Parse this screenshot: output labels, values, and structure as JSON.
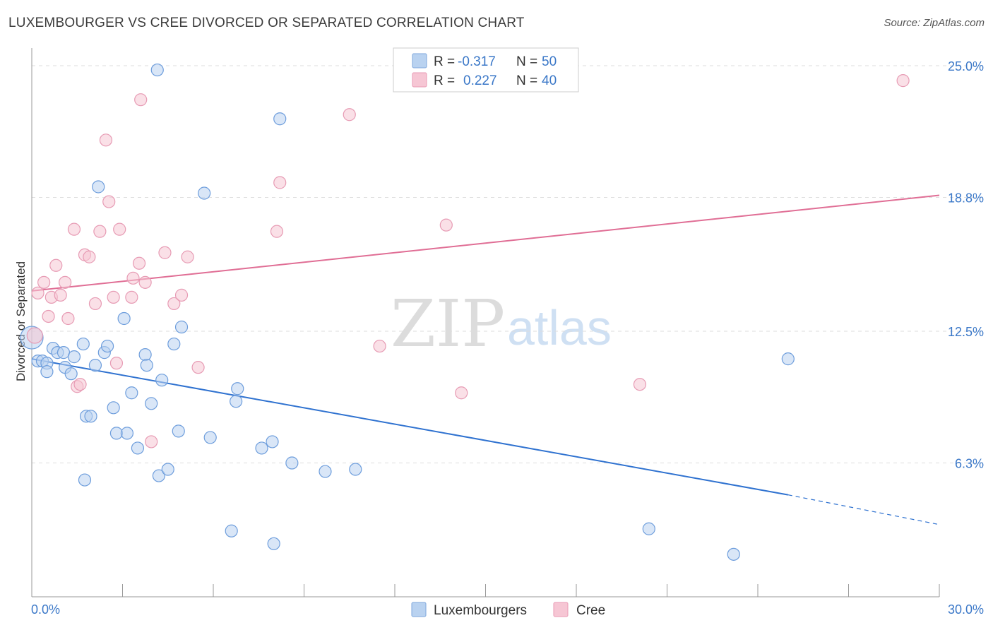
{
  "title": "LUXEMBOURGER VS CREE DIVORCED OR SEPARATED CORRELATION CHART",
  "source": "Source: ZipAtlas.com",
  "watermark": {
    "zip": "ZIP",
    "atlas": "atlas"
  },
  "colors": {
    "blue": "#3b78c8",
    "blue_fill": "#b9d2f0",
    "blue_line": "#2f72d0",
    "pink": "#e86f96",
    "pink_fill": "#f6c6d4",
    "pink_line": "#e06e95",
    "grid": "#dddddd",
    "axis": "#999999"
  },
  "legend": {
    "rows": [
      {
        "r_label": "R =",
        "r_value": "-0.317",
        "n_label": "N =",
        "n_value": "50"
      },
      {
        "r_label": "R =",
        "r_value": "0.227",
        "n_label": "N =",
        "n_value": "40"
      }
    ]
  },
  "bottom_legend": [
    "Luxembourgers",
    "Cree"
  ],
  "chart_data": {
    "type": "scatter",
    "title": "LUXEMBOURGER VS CREE DIVORCED OR SEPARATED CORRELATION CHART",
    "xlabel": "",
    "ylabel": "Divorced or Separated",
    "xlim": [
      0,
      30
    ],
    "ylim": [
      0,
      25.6
    ],
    "x_tick_labels": [
      "0.0%",
      "30.0%"
    ],
    "y_ticks": [
      6.3,
      12.5,
      18.8,
      25.0
    ],
    "y_tick_labels": [
      "6.3%",
      "12.5%",
      "18.8%",
      "25.0%"
    ],
    "legend_position": "top-center",
    "series": [
      {
        "name": "Luxembourgers",
        "r": -0.317,
        "n": 50,
        "trend": {
          "x0": 0,
          "y0": 11.2,
          "x1": 25,
          "y1": 4.8,
          "dashed_to_x": 30,
          "dashed_to_y": 3.4
        },
        "points": [
          [
            0.0,
            12.2
          ],
          [
            0.2,
            11.1
          ],
          [
            0.35,
            11.1
          ],
          [
            0.5,
            11.0
          ],
          [
            0.5,
            10.6
          ],
          [
            0.7,
            11.7
          ],
          [
            0.85,
            11.5
          ],
          [
            1.05,
            11.5
          ],
          [
            1.1,
            10.8
          ],
          [
            1.3,
            10.5
          ],
          [
            1.4,
            11.3
          ],
          [
            1.7,
            11.9
          ],
          [
            1.8,
            8.5
          ],
          [
            1.95,
            8.5
          ],
          [
            2.1,
            10.9
          ],
          [
            2.2,
            19.3
          ],
          [
            2.4,
            11.5
          ],
          [
            2.5,
            11.8
          ],
          [
            2.7,
            8.9
          ],
          [
            2.8,
            7.7
          ],
          [
            3.05,
            13.1
          ],
          [
            3.15,
            7.7
          ],
          [
            3.3,
            9.6
          ],
          [
            3.5,
            7.0
          ],
          [
            3.75,
            11.4
          ],
          [
            3.8,
            10.9
          ],
          [
            3.95,
            9.1
          ],
          [
            4.2,
            5.7
          ],
          [
            4.3,
            10.2
          ],
          [
            4.5,
            6.0
          ],
          [
            4.7,
            11.9
          ],
          [
            4.85,
            7.8
          ],
          [
            4.95,
            12.7
          ],
          [
            5.7,
            19.0
          ],
          [
            5.9,
            7.5
          ],
          [
            6.6,
            3.1
          ],
          [
            6.75,
            9.2
          ],
          [
            6.8,
            9.8
          ],
          [
            7.6,
            7.0
          ],
          [
            7.95,
            7.3
          ],
          [
            8.0,
            2.5
          ],
          [
            8.2,
            22.5
          ],
          [
            8.6,
            6.3
          ],
          [
            9.7,
            5.9
          ],
          [
            10.7,
            6.0
          ],
          [
            4.15,
            24.8
          ],
          [
            1.75,
            5.5
          ],
          [
            20.4,
            3.2
          ],
          [
            23.2,
            2.0
          ],
          [
            25.0,
            11.2
          ]
        ]
      },
      {
        "name": "Cree",
        "r": 0.227,
        "n": 40,
        "trend": {
          "x0": 0,
          "y0": 14.4,
          "x1": 30,
          "y1": 18.9
        },
        "points": [
          [
            0.1,
            12.3
          ],
          [
            0.2,
            14.3
          ],
          [
            0.4,
            14.8
          ],
          [
            0.55,
            13.2
          ],
          [
            0.65,
            14.1
          ],
          [
            0.8,
            15.6
          ],
          [
            0.95,
            14.2
          ],
          [
            1.1,
            14.8
          ],
          [
            1.2,
            13.1
          ],
          [
            1.4,
            17.3
          ],
          [
            1.5,
            9.9
          ],
          [
            1.6,
            10.0
          ],
          [
            1.75,
            16.1
          ],
          [
            1.9,
            16.0
          ],
          [
            2.1,
            13.8
          ],
          [
            2.25,
            17.2
          ],
          [
            2.45,
            21.5
          ],
          [
            2.55,
            18.6
          ],
          [
            2.7,
            14.1
          ],
          [
            2.8,
            11.0
          ],
          [
            2.9,
            17.3
          ],
          [
            3.3,
            14.1
          ],
          [
            3.35,
            15.0
          ],
          [
            3.55,
            15.7
          ],
          [
            3.6,
            23.4
          ],
          [
            3.75,
            14.8
          ],
          [
            3.95,
            7.3
          ],
          [
            4.4,
            16.2
          ],
          [
            4.7,
            13.8
          ],
          [
            4.95,
            14.2
          ],
          [
            5.15,
            16.0
          ],
          [
            5.5,
            10.8
          ],
          [
            8.1,
            17.2
          ],
          [
            8.2,
            19.5
          ],
          [
            10.5,
            22.7
          ],
          [
            11.5,
            11.8
          ],
          [
            13.7,
            17.5
          ],
          [
            14.2,
            9.6
          ],
          [
            20.1,
            10.0
          ],
          [
            28.8,
            24.3
          ]
        ]
      }
    ]
  }
}
